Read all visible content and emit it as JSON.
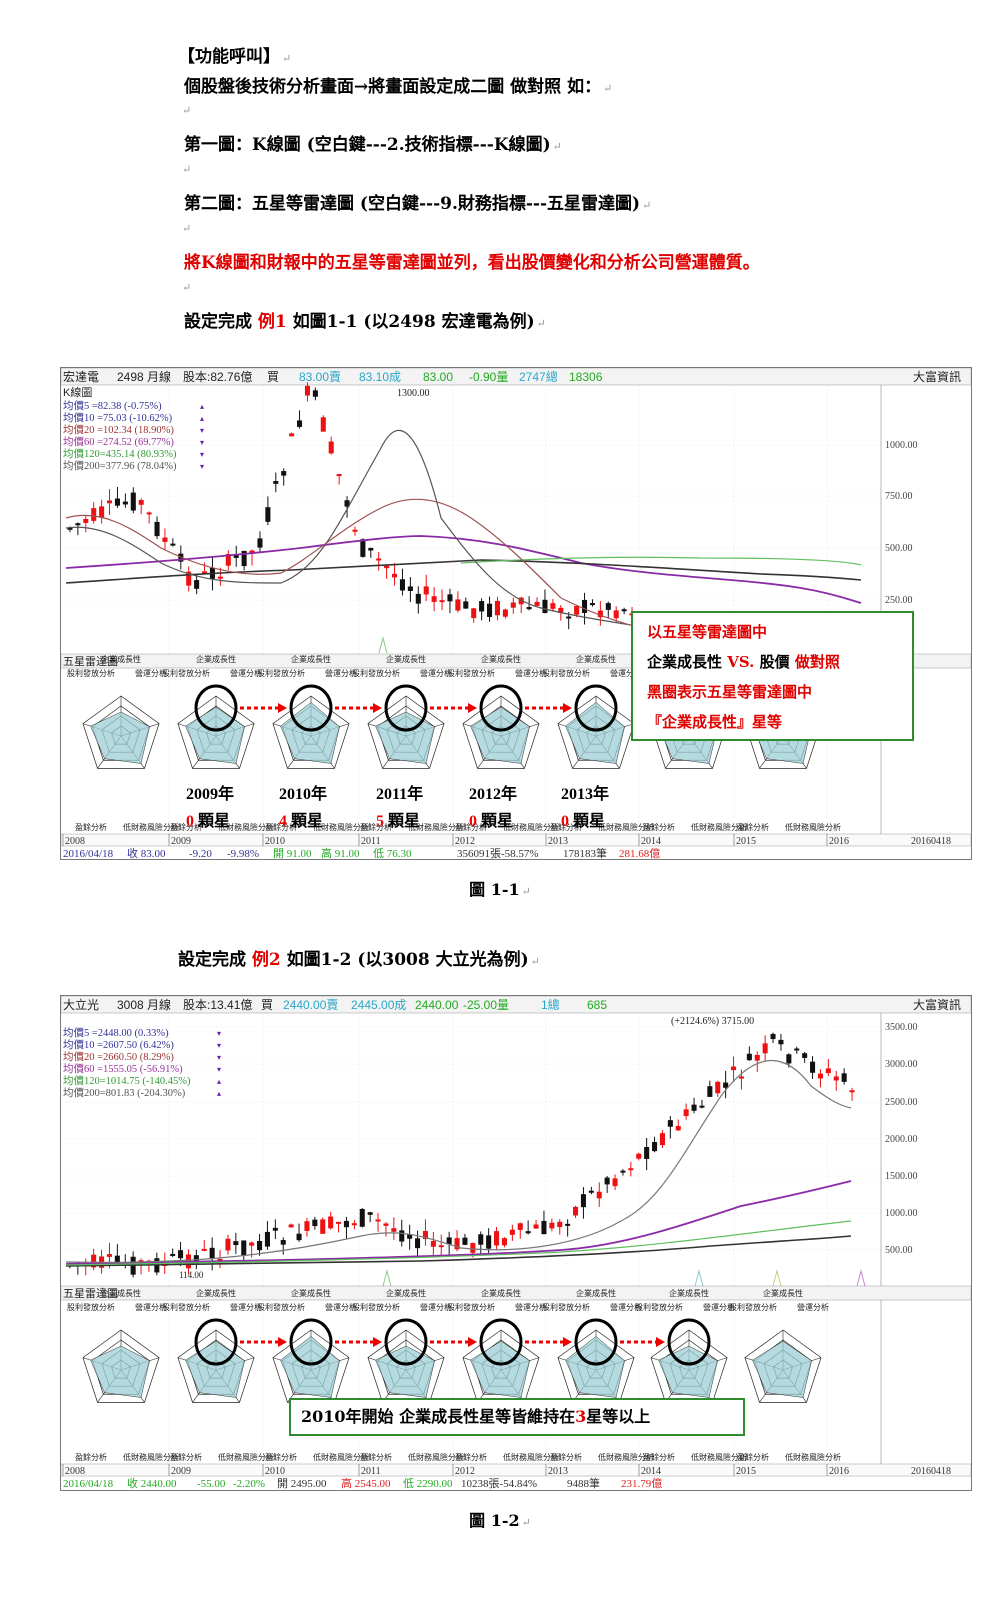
{
  "intro": {
    "title": "【功能呼叫】",
    "line1": "個股盤後技術分析畫面→將畫面設定成二圖 做對照 如：",
    "line2": "第一圖：K線圖 (空白鍵---2.技術指標---K線圖)",
    "line3": "第二圖：五星等雷達圖 (空白鍵---9.財務指標---五星雷達圖)",
    "line4_red": "將K線圖和財報中的五星等雷達圖並列，看出股價變化和分析公司營運體質。",
    "ex1_a": "設定完成",
    "ex1_red": "例1",
    "ex1_b": "如圖1-1 (以2498 宏達電為例)"
  },
  "fig1": {
    "header": {
      "name": "宏達電",
      "code": "2498 月線",
      "capital": "股本:82.76億",
      "buy": "買",
      "bid": "83.00賣",
      "ask": "83.10成",
      "last": "83.00",
      "change": "-0.90量",
      "vol": "2747總",
      "total": "18306",
      "brand": "大富資訊"
    },
    "kline_label": "K線圖",
    "ma_lines": [
      {
        "text": "均價5 =82.38 (-0.75%)",
        "color": "#333399",
        "arrow": "▴"
      },
      {
        "text": "均價10 =75.03 (-10.62%)",
        "color": "#333399",
        "arrow": "▴"
      },
      {
        "text": "均價20 =102.34 (18.90%)",
        "color": "#993333",
        "arrow": "▾"
      },
      {
        "text": "均價60 =274.52 (69.77%)",
        "color": "#993399",
        "arrow": "▾"
      },
      {
        "text": "均價120=435.14 (80.93%)",
        "color": "#339933",
        "arrow": "▾"
      },
      {
        "text": "均價200=377.96 (78.04%)",
        "color": "#555555",
        "arrow": "▾"
      }
    ],
    "high_label": "1300.00",
    "y_ticks": [
      "1000.00",
      "750.00",
      "500.00",
      "250.00"
    ],
    "radar_label": "五星雷達圖",
    "radar_axes": {
      "top": "企業成長性",
      "left": "股利發放分析",
      "right": "營運分析",
      "bottom_left": "盈餘分析",
      "bottom_right": "低財務風險分析"
    },
    "years": [
      "2009年",
      "2010年",
      "2011年",
      "2012年",
      "2013年"
    ],
    "stars": [
      {
        "num": "0",
        "unit": "顆星"
      },
      {
        "num": "4",
        "unit": "顆星"
      },
      {
        "num": "5",
        "unit": "顆星"
      },
      {
        "num": "0",
        "unit": "顆星"
      },
      {
        "num": "0",
        "unit": "顆星"
      }
    ],
    "axis_years": [
      "2008",
      "2009",
      "2010",
      "2011",
      "2012",
      "2013",
      "2014",
      "2015",
      "2016"
    ],
    "axis_end": "20160418",
    "status": {
      "date": "2016/04/18",
      "close": "收 83.00",
      "chg": "-9.20",
      "pct": "-9.98%",
      "open": "開 91.00",
      "high": "高 91.00",
      "low": "低 76.30",
      "vol": "356091張-58.57%",
      "trades": "178183筆",
      "amount": "281.68億"
    },
    "callout": {
      "line1": "以五星等雷達圖中",
      "line2_a": "企業成長性",
      "line2_vs": "VS.",
      "line2_b": "股價",
      "line2_c": "做對照",
      "line3": "黑圈表示五星等雷達圖中",
      "line4": "『企業成長性』星等"
    },
    "caption": "圖 1-1"
  },
  "ex2": {
    "a": "設定完成",
    "red": "例2",
    "b": "如圖1-2 (以3008 大立光為例)"
  },
  "fig2": {
    "header": {
      "name": "大立光",
      "code": "3008 月線",
      "capital": "股本:13.41億",
      "buy": "買",
      "bid": "2440.00賣",
      "ask": "2445.00成",
      "last": "2440.00",
      "change": "-25.00量",
      "vol": "1總",
      "total": "685",
      "brand": "大富資訊"
    },
    "ma_lines": [
      {
        "text": "均價5 =2448.00 (0.33%)",
        "color": "#333399",
        "arrow": "▾"
      },
      {
        "text": "均價10 =2607.50 (6.42%)",
        "color": "#333399",
        "arrow": "▾"
      },
      {
        "text": "均價20 =2660.50 (8.29%)",
        "color": "#993333",
        "arrow": "▾"
      },
      {
        "text": "均價60 =1555.05 (-56.91%)",
        "color": "#993399",
        "arrow": "▾"
      },
      {
        "text": "均價120=1014.75 (-140.45%)",
        "color": "#339933",
        "arrow": "▴"
      },
      {
        "text": "均價200=801.83 (-204.30%)",
        "color": "#555555",
        "arrow": "▴"
      }
    ],
    "high_label": "(+2124.6%) 3715.00",
    "low_label": "114.00",
    "y_ticks": [
      "3500.00",
      "3000.00",
      "2500.00",
      "2000.00",
      "1500.00",
      "1000.00",
      "500.00"
    ],
    "radar_label": "五星雷達圖",
    "axis_years": [
      "2008",
      "2009",
      "2010",
      "2011",
      "2012",
      "2013",
      "2014",
      "2015",
      "2016"
    ],
    "axis_end": "20160418",
    "status": {
      "date": "2016/04/18",
      "close": "收 2440.00",
      "chg": "-55.00",
      "pct": "-2.20%",
      "open": "開 2495.00",
      "high": "高 2545.00",
      "low": "低 2290.00",
      "vol": "10238張-54.84%",
      "trades": "9488筆",
      "amount": "231.79億"
    },
    "callout": {
      "a": "2010年開始 企業成長性星等皆維持在",
      "num": "3",
      "b": "星等以上"
    },
    "caption": "圖 1-2"
  }
}
